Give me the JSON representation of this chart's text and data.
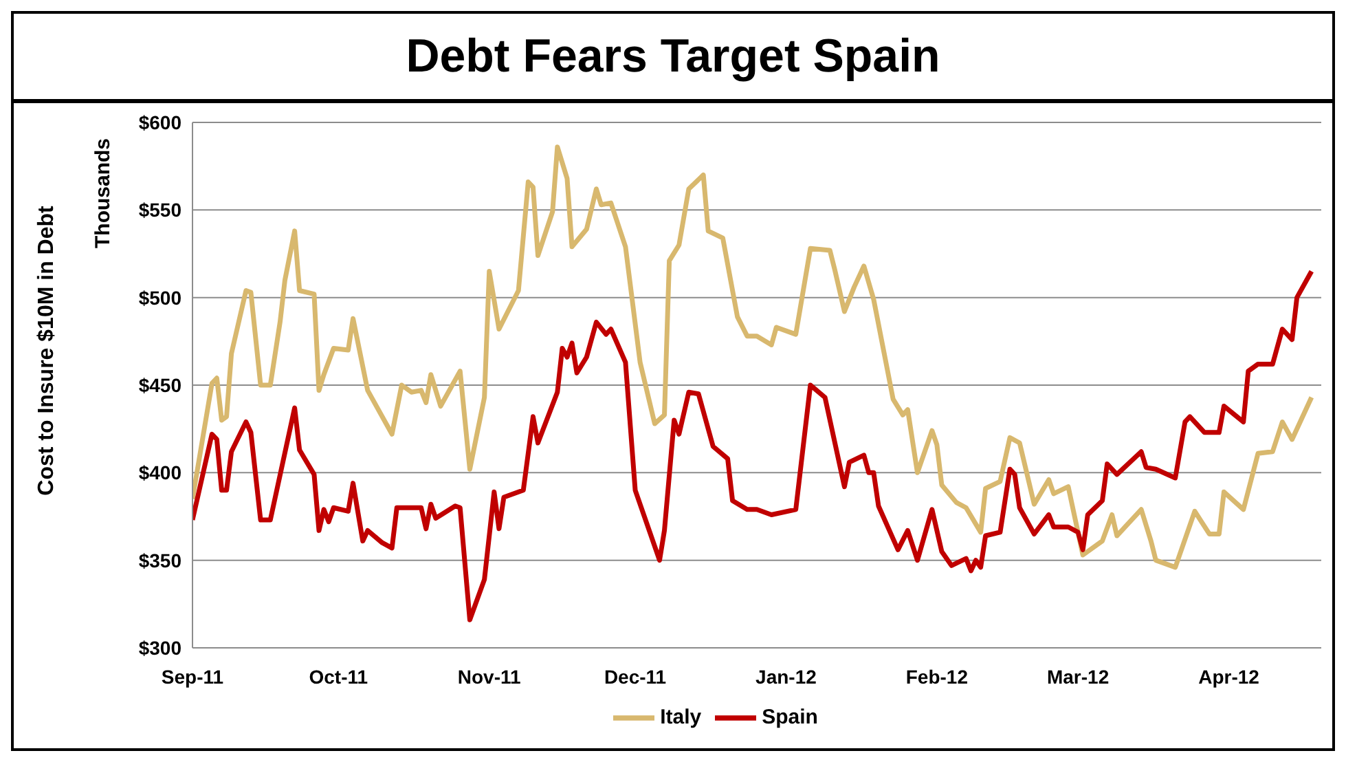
{
  "chart_data": {
    "type": "line",
    "title": "Debt Fears Target Spain",
    "ylabel": "Cost to Insure $10M in Debt",
    "annotations": [
      "Thousands"
    ],
    "xlim": [
      "2011-09-01",
      "2012-04-20"
    ],
    "xticks": [
      {
        "value": "2011-09-01",
        "label": "Sep-11"
      },
      {
        "value": "2011-10-01",
        "label": "Oct-11"
      },
      {
        "value": "2011-11-01",
        "label": "Nov-11"
      },
      {
        "value": "2011-12-01",
        "label": "Dec-11"
      },
      {
        "value": "2012-01-01",
        "label": "Jan-12"
      },
      {
        "value": "2012-02-01",
        "label": "Feb-12"
      },
      {
        "value": "2012-03-01",
        "label": "Mar-12"
      },
      {
        "value": "2012-04-01",
        "label": "Apr-12"
      }
    ],
    "ylim": [
      300,
      600
    ],
    "yticks": [
      {
        "value": 300,
        "label": "$300"
      },
      {
        "value": 350,
        "label": "$350"
      },
      {
        "value": 400,
        "label": "$400"
      },
      {
        "value": 450,
        "label": "$450"
      },
      {
        "value": 500,
        "label": "$500"
      },
      {
        "value": 550,
        "label": "$550"
      },
      {
        "value": 600,
        "label": "$600"
      }
    ],
    "grid": "y",
    "legend": "bottom",
    "series": [
      {
        "name": "Italy",
        "color": "#d8b86e",
        "x": [
          "2011-09-01",
          "2011-09-05",
          "2011-09-06",
          "2011-09-07",
          "2011-09-08",
          "2011-09-09",
          "2011-09-12",
          "2011-09-13",
          "2011-09-15",
          "2011-09-17",
          "2011-09-19",
          "2011-09-20",
          "2011-09-22",
          "2011-09-23",
          "2011-09-26",
          "2011-09-27",
          "2011-09-28",
          "2011-09-30",
          "2011-10-03",
          "2011-10-04",
          "2011-10-07",
          "2011-10-12",
          "2011-10-14",
          "2011-10-16",
          "2011-10-18",
          "2011-10-19",
          "2011-10-20",
          "2011-10-22",
          "2011-10-26",
          "2011-10-28",
          "2011-10-31",
          "2011-11-01",
          "2011-11-03",
          "2011-11-07",
          "2011-11-09",
          "2011-11-10",
          "2011-11-11",
          "2011-11-14",
          "2011-11-15",
          "2011-11-17",
          "2011-11-18",
          "2011-11-21",
          "2011-11-23",
          "2011-11-24",
          "2011-11-26",
          "2011-11-29",
          "2011-12-02",
          "2011-12-05",
          "2011-12-07",
          "2011-12-08",
          "2011-12-10",
          "2011-12-12",
          "2011-12-15",
          "2011-12-16",
          "2011-12-19",
          "2011-12-22",
          "2011-12-24",
          "2011-12-26",
          "2011-12-29",
          "2011-12-30",
          "2012-01-03",
          "2012-01-06",
          "2012-01-10",
          "2012-01-11",
          "2012-01-13",
          "2012-01-15",
          "2012-01-17",
          "2012-01-19",
          "2012-01-23",
          "2012-01-25",
          "2012-01-26",
          "2012-01-28",
          "2012-01-31",
          "2012-02-01",
          "2012-02-02",
          "2012-02-05",
          "2012-02-07",
          "2012-02-10",
          "2012-02-11",
          "2012-02-14",
          "2012-02-16",
          "2012-02-18",
          "2012-02-21",
          "2012-02-24",
          "2012-02-25",
          "2012-02-28",
          "2012-03-02",
          "2012-03-06",
          "2012-03-08",
          "2012-03-09",
          "2012-03-14",
          "2012-03-16",
          "2012-03-17",
          "2012-03-21",
          "2012-03-25",
          "2012-03-28",
          "2012-03-30",
          "2012-03-31",
          "2012-04-04",
          "2012-04-07",
          "2012-04-10",
          "2012-04-12",
          "2012-04-14",
          "2012-04-18"
        ],
        "values": [
          385,
          451,
          454,
          430,
          432,
          468,
          504,
          503,
          450,
          450,
          486,
          510,
          538,
          504,
          502,
          447,
          456,
          471,
          470,
          488,
          447,
          422,
          450,
          446,
          447,
          440,
          456,
          438,
          458,
          402,
          443,
          515,
          482,
          504,
          566,
          563,
          524,
          549,
          586,
          568,
          529,
          539,
          562,
          553,
          554,
          529,
          463,
          428,
          433,
          521,
          530,
          562,
          570,
          538,
          534,
          489,
          478,
          478,
          473,
          483,
          479,
          528,
          527,
          516,
          492,
          506,
          518,
          499,
          442,
          433,
          436,
          400,
          424,
          416,
          393,
          383,
          380,
          366,
          391,
          395,
          420,
          417,
          382,
          396,
          388,
          392,
          353,
          361,
          376,
          364,
          379,
          361,
          350,
          346,
          378,
          365,
          365,
          389,
          379,
          411,
          412,
          429,
          419,
          443
        ]
      },
      {
        "name": "Spain",
        "color": "#c00000",
        "x": [
          "2011-09-01",
          "2011-09-05",
          "2011-09-06",
          "2011-09-07",
          "2011-09-08",
          "2011-09-09",
          "2011-09-12",
          "2011-09-13",
          "2011-09-15",
          "2011-09-17",
          "2011-09-22",
          "2011-09-23",
          "2011-09-26",
          "2011-09-27",
          "2011-09-28",
          "2011-09-29",
          "2011-09-30",
          "2011-10-03",
          "2011-10-04",
          "2011-10-06",
          "2011-10-07",
          "2011-10-10",
          "2011-10-12",
          "2011-10-13",
          "2011-10-18",
          "2011-10-19",
          "2011-10-20",
          "2011-10-21",
          "2011-10-25",
          "2011-10-26",
          "2011-10-28",
          "2011-10-31",
          "2011-11-02",
          "2011-11-03",
          "2011-11-04",
          "2011-11-08",
          "2011-11-10",
          "2011-11-11",
          "2011-11-15",
          "2011-11-16",
          "2011-11-17",
          "2011-11-18",
          "2011-11-19",
          "2011-11-21",
          "2011-11-23",
          "2011-11-25",
          "2011-11-26",
          "2011-11-29",
          "2011-12-01",
          "2011-12-06",
          "2011-12-07",
          "2011-12-09",
          "2011-12-10",
          "2011-12-12",
          "2011-12-14",
          "2011-12-17",
          "2011-12-20",
          "2011-12-21",
          "2011-12-24",
          "2011-12-26",
          "2011-12-29",
          "2012-01-03",
          "2012-01-06",
          "2012-01-09",
          "2012-01-13",
          "2012-01-14",
          "2012-01-17",
          "2012-01-18",
          "2012-01-19",
          "2012-01-20",
          "2012-01-24",
          "2012-01-26",
          "2012-01-28",
          "2012-01-31",
          "2012-02-02",
          "2012-02-04",
          "2012-02-07",
          "2012-02-08",
          "2012-02-09",
          "2012-02-10",
          "2012-02-11",
          "2012-02-14",
          "2012-02-16",
          "2012-02-17",
          "2012-02-18",
          "2012-02-21",
          "2012-02-24",
          "2012-02-25",
          "2012-02-28",
          "2012-03-01",
          "2012-03-02",
          "2012-03-03",
          "2012-03-06",
          "2012-03-07",
          "2012-03-09",
          "2012-03-14",
          "2012-03-15",
          "2012-03-17",
          "2012-03-21",
          "2012-03-23",
          "2012-03-24",
          "2012-03-27",
          "2012-03-30",
          "2012-03-31",
          "2012-04-04",
          "2012-04-05",
          "2012-04-07",
          "2012-04-10",
          "2012-04-12",
          "2012-04-14",
          "2012-04-15",
          "2012-04-18"
        ],
        "values": [
          373,
          422,
          419,
          390,
          390,
          412,
          429,
          423,
          373,
          373,
          437,
          413,
          399,
          367,
          379,
          372,
          380,
          378,
          394,
          361,
          367,
          360,
          357,
          380,
          380,
          368,
          382,
          374,
          381,
          380,
          316,
          339,
          389,
          368,
          386,
          390,
          432,
          417,
          446,
          471,
          466,
          474,
          457,
          466,
          486,
          479,
          482,
          463,
          390,
          350,
          367,
          430,
          422,
          446,
          445,
          415,
          408,
          384,
          379,
          379,
          376,
          379,
          450,
          443,
          392,
          406,
          410,
          400,
          400,
          381,
          356,
          367,
          350,
          379,
          355,
          347,
          351,
          344,
          350,
          346,
          364,
          366,
          402,
          399,
          380,
          365,
          376,
          369,
          369,
          366,
          356,
          376,
          384,
          405,
          399,
          412,
          403,
          402,
          397,
          429,
          432,
          423,
          423,
          438,
          429,
          458,
          462,
          462,
          482,
          476,
          500,
          515
        ]
      }
    ]
  }
}
